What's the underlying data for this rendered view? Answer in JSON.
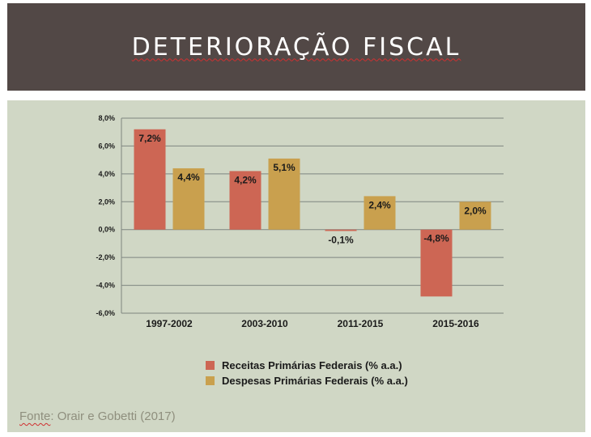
{
  "header": {
    "title": "DETERIORAÇÃO FISCAL"
  },
  "colors": {
    "header_bg": "#524846",
    "panel_bg": "#d0d7c5",
    "receitas": "#cd6654",
    "despesas": "#c9a04e"
  },
  "chart_data": {
    "type": "bar",
    "categories": [
      "1997-2002",
      "2003-2010",
      "2011-2015",
      "2015-2016"
    ],
    "series": [
      {
        "name": "Receitas Primárias Federais (% a.a.)",
        "values": [
          7.2,
          4.2,
          -0.1,
          -4.8
        ],
        "labels": [
          "7,2%",
          "4,2%",
          "-0,1%",
          "-4,8%"
        ]
      },
      {
        "name": "Despesas Primárias Federais (% a.a.)",
        "values": [
          4.4,
          5.1,
          2.4,
          2.0
        ],
        "labels": [
          "4,4%",
          "5,1%",
          "2,4%",
          "2,0%"
        ]
      }
    ],
    "yticks": [
      8,
      6,
      4,
      2,
      0,
      -2,
      -4,
      -6
    ],
    "ytick_labels": [
      "8,0%",
      "6,0%",
      "4,0%",
      "2,0%",
      "0,0%",
      "-2,0%",
      "-4,0%",
      "-6,0%"
    ],
    "ylim": [
      -6,
      8
    ],
    "grid": true,
    "legend_position": "bottom"
  },
  "source": {
    "prefix": "Fonte",
    "text": ": Orair e Gobetti (2017)"
  }
}
